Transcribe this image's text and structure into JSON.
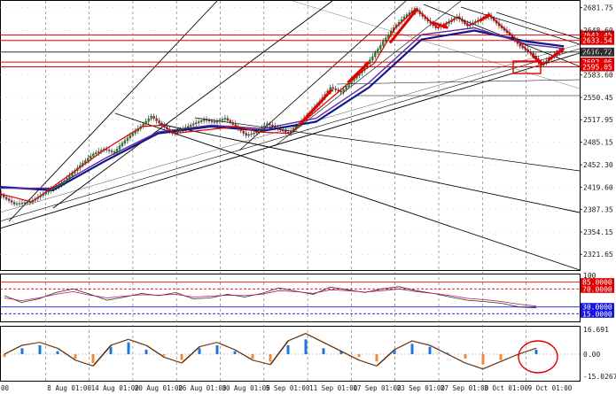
{
  "chart_data": {
    "type": "line",
    "main_panel": {
      "y_ticks": [
        "2681.75",
        "2648.60",
        "2616.27",
        "2583.60",
        "2550.45",
        "2517.95",
        "2485.15",
        "2452.30",
        "2419.60",
        "2387.35",
        "2354.15",
        "2321.65"
      ],
      "ylim": [
        2300,
        2690
      ],
      "marked_levels": [
        {
          "label": "2641.45",
          "value": 2641.45,
          "color": "#e00000"
        },
        {
          "label": "2633.54",
          "value": 2633.54,
          "color": "#e00000"
        },
        {
          "label": "2616.72",
          "value": 2616.72,
          "color": "#303030"
        },
        {
          "label": "2602.06",
          "value": 2602.06,
          "color": "#e00000"
        },
        {
          "label": "2595.05",
          "value": 2595.05,
          "color": "#e00000"
        }
      ],
      "price_path": [
        [
          0,
          2410
        ],
        [
          3,
          2395
        ],
        [
          6,
          2398
        ],
        [
          9,
          2412
        ],
        [
          12,
          2425
        ],
        [
          14,
          2440
        ],
        [
          16,
          2455
        ],
        [
          18,
          2468
        ],
        [
          20,
          2475
        ],
        [
          22,
          2470
        ],
        [
          23,
          2480
        ],
        [
          25,
          2495
        ],
        [
          27,
          2508
        ],
        [
          29,
          2523
        ],
        [
          31,
          2510
        ],
        [
          33,
          2498
        ],
        [
          35,
          2505
        ],
        [
          37,
          2512
        ],
        [
          39,
          2518
        ],
        [
          41,
          2514
        ],
        [
          43,
          2520
        ],
        [
          45,
          2508
        ],
        [
          47,
          2495
        ],
        [
          49,
          2500
        ],
        [
          51,
          2512
        ],
        [
          53,
          2505
        ],
        [
          55,
          2498
        ],
        [
          57,
          2512
        ],
        [
          59,
          2528
        ],
        [
          61,
          2545
        ],
        [
          63,
          2565
        ],
        [
          65,
          2558
        ],
        [
          67,
          2575
        ],
        [
          69,
          2590
        ],
        [
          71,
          2610
        ],
        [
          73,
          2632
        ],
        [
          75,
          2652
        ],
        [
          77,
          2668
        ],
        [
          79,
          2680
        ],
        [
          81,
          2665
        ],
        [
          83,
          2652
        ],
        [
          85,
          2658
        ],
        [
          87,
          2668
        ],
        [
          89,
          2655
        ],
        [
          91,
          2663
        ],
        [
          93,
          2670
        ],
        [
          95,
          2655
        ],
        [
          97,
          2642
        ],
        [
          99,
          2625
        ],
        [
          101,
          2615
        ],
        [
          103,
          2598
        ],
        [
          105,
          2610
        ],
        [
          107,
          2620
        ]
      ],
      "moving_averages": [
        {
          "values": [
            [
              0,
              2420
            ],
            [
              10,
              2415
            ],
            [
              20,
              2458
            ],
            [
              30,
              2498
            ],
            [
              40,
              2508
            ],
            [
              50,
              2502
            ],
            [
              60,
              2515
            ],
            [
              70,
              2565
            ],
            [
              80,
              2635
            ],
            [
              90,
              2648
            ],
            [
              100,
              2632
            ],
            [
              107,
              2625
            ]
          ],
          "color": "#0b1a8c"
        },
        {
          "values": [
            [
              0,
              2418
            ],
            [
              10,
              2418
            ],
            [
              20,
              2462
            ],
            [
              30,
              2500
            ],
            [
              40,
              2510
            ],
            [
              50,
              2505
            ],
            [
              60,
              2520
            ],
            [
              70,
              2572
            ],
            [
              80,
              2642
            ],
            [
              90,
              2652
            ],
            [
              100,
              2628
            ],
            [
              107,
              2622
            ]
          ],
          "color": "#6a2b9a"
        }
      ]
    },
    "rsi_panel": {
      "y_ticks": [
        "100",
        "85.0000",
        "70.0000",
        "30.0000",
        "15.0000"
      ],
      "levels": [
        {
          "label": "85.0000",
          "value": 85,
          "color": "#e00000"
        },
        {
          "label": "70.0000",
          "value": 70,
          "color": "#e00000"
        },
        {
          "label": "30.0000",
          "value": 30,
          "color": "#1515e0"
        },
        {
          "label": "15.0000",
          "value": 15,
          "color": "#1515e0"
        }
      ],
      "ylim": [
        0,
        100
      ],
      "series_a": [
        55,
        40,
        48,
        62,
        70,
        58,
        45,
        52,
        60,
        55,
        62,
        48,
        50,
        58,
        52,
        60,
        72,
        65,
        58,
        74,
        68,
        62,
        70,
        75,
        66,
        60,
        52,
        45,
        42,
        38,
        30,
        28
      ],
      "series_b": [
        50,
        44,
        50,
        58,
        64,
        56,
        50,
        54,
        57,
        56,
        58,
        52,
        54,
        56,
        55,
        58,
        66,
        64,
        60,
        68,
        66,
        63,
        66,
        70,
        64,
        60,
        55,
        49,
        46,
        42,
        36,
        32
      ]
    },
    "macd_panel": {
      "y_ticks": [
        "16.691",
        "0.00",
        "-15.0267"
      ],
      "ylim": [
        -18,
        18
      ],
      "histogram": [
        -2,
        4,
        6,
        2,
        -3,
        -6,
        5,
        8,
        3,
        -1,
        -4,
        4,
        6,
        2,
        -3,
        -5,
        6,
        10,
        4,
        2,
        -2,
        -5,
        3,
        7,
        5,
        1,
        -3,
        -7,
        -4,
        -1,
        3
      ],
      "signal": [
        0,
        6,
        8,
        4,
        -4,
        -8,
        6,
        10,
        6,
        -2,
        -6,
        5,
        8,
        3,
        -4,
        -7,
        9,
        14,
        8,
        2,
        -4,
        -8,
        3,
        9,
        6,
        0,
        -6,
        -10,
        -5,
        0,
        4
      ]
    },
    "x_ticks": [
      "00",
      "8 Aug 01:00",
      "14 Aug 01:00",
      "20 Aug 01:00",
      "26 Aug 01:00",
      "30 Aug 01:00",
      "5 Sep 01:00",
      "11 Sep 01:00",
      "17 Sep 01:00",
      "23 Sep 01:00",
      "27 Sep 01:00",
      "3 Oct 01:00",
      "9 Oct 01:00"
    ]
  }
}
